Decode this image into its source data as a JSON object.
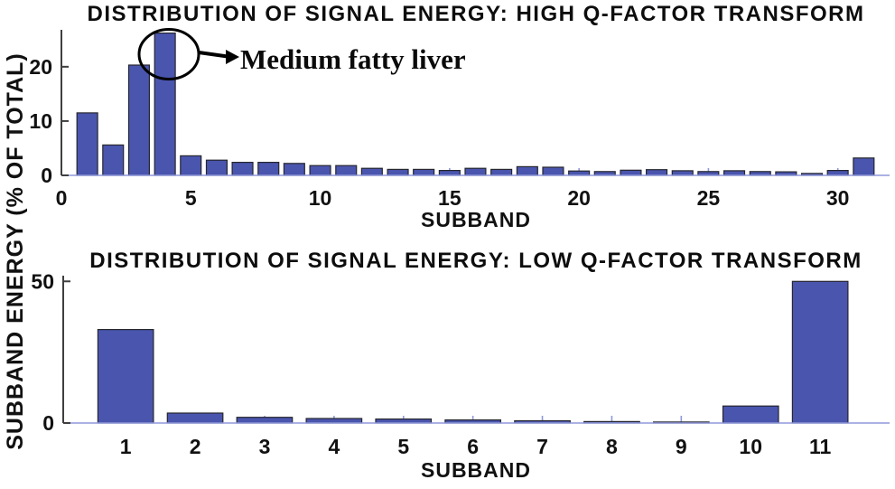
{
  "page": {
    "background": "#ffffff"
  },
  "colors": {
    "bar_fill": "#4A55AE",
    "bar_edge": "#26262e",
    "axis_light": "#8F99DB",
    "axis_dark": "#3f3f3f",
    "text": "#111111",
    "annotation_stroke": "#000000"
  },
  "shared_ylabel": "SUBBAND ENERGY (% OF TOTAL)",
  "chart_data": [
    {
      "type": "bar",
      "title": "DISTRIBUTION OF SIGNAL ENERGY: HIGH Q-FACTOR TRANSFORM",
      "xlabel": "SUBBAND",
      "ylabel": "SUBBAND ENERGY (% OF TOTAL)",
      "categories": [
        1,
        2,
        3,
        4,
        5,
        6,
        7,
        8,
        9,
        10,
        11,
        12,
        13,
        14,
        15,
        16,
        17,
        18,
        19,
        20,
        21,
        22,
        23,
        24,
        25,
        26,
        27,
        28,
        29,
        30,
        31
      ],
      "values": [
        11.5,
        5.6,
        20.3,
        26.2,
        3.6,
        2.8,
        2.4,
        2.4,
        2.2,
        1.8,
        1.8,
        1.3,
        1.1,
        1.1,
        0.9,
        1.3,
        1.1,
        1.6,
        1.5,
        0.8,
        0.7,
        0.95,
        1.05,
        0.85,
        0.7,
        0.85,
        0.7,
        0.65,
        0.35,
        0.9,
        3.2
      ],
      "ylim": [
        0,
        26.8
      ],
      "y_ticks": [
        0,
        10,
        20
      ],
      "x_tick_positions": [
        0,
        5,
        10,
        15,
        20,
        25,
        30
      ],
      "x_tick_labels": [
        "0",
        "5",
        "10",
        "15",
        "20",
        "25",
        "30"
      ],
      "grid": false,
      "legend": null,
      "annotation": {
        "text": "Medium fatty liver",
        "target_category": 4
      }
    },
    {
      "type": "bar",
      "title": "DISTRIBUTION OF SIGNAL ENERGY: LOW Q-FACTOR TRANSFORM",
      "xlabel": "SUBBAND",
      "ylabel": "SUBBAND ENERGY (% OF TOTAL)",
      "categories": [
        1,
        2,
        3,
        4,
        5,
        6,
        7,
        8,
        9,
        10,
        11
      ],
      "values": [
        33,
        3.5,
        2,
        1.6,
        1.4,
        1.1,
        0.8,
        0.5,
        0.35,
        6,
        50
      ],
      "ylim": [
        0,
        52
      ],
      "y_ticks": [
        0,
        50
      ],
      "x_tick_positions": [
        1,
        2,
        3,
        4,
        5,
        6,
        7,
        8,
        9,
        10,
        11
      ],
      "x_tick_labels": [
        "1",
        "2",
        "3",
        "4",
        "5",
        "6",
        "7",
        "8",
        "9",
        "10",
        "11"
      ],
      "grid": false,
      "legend": null,
      "annotation": null
    }
  ]
}
